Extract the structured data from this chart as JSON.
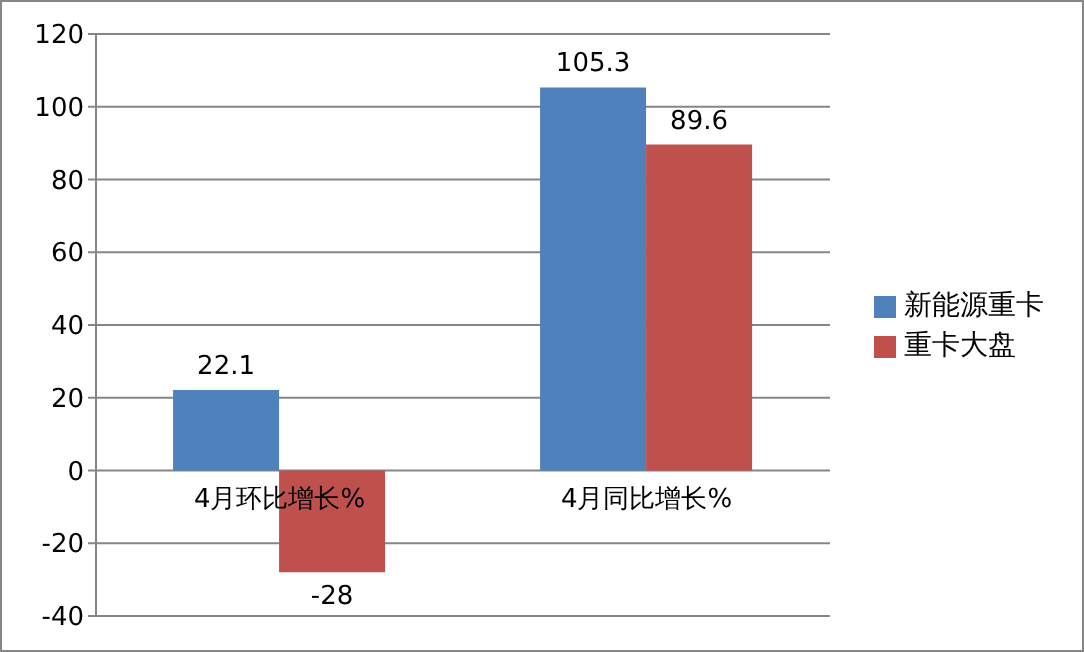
{
  "chart_data": {
    "type": "bar",
    "categories": [
      "4月环比增长%",
      "4月同比增长%"
    ],
    "series": [
      {
        "name": "新能源重卡",
        "color": "#4f81bd",
        "values": [
          22.1,
          105.3
        ]
      },
      {
        "name": "重卡大盘",
        "color": "#c0504d",
        "values": [
          -28,
          89.6
        ]
      }
    ],
    "ylim": [
      -40,
      120
    ],
    "yticks": [
      -40,
      -20,
      0,
      20,
      40,
      60,
      80,
      100,
      120
    ],
    "grid": "y",
    "legend": "right",
    "data_labels": true
  }
}
